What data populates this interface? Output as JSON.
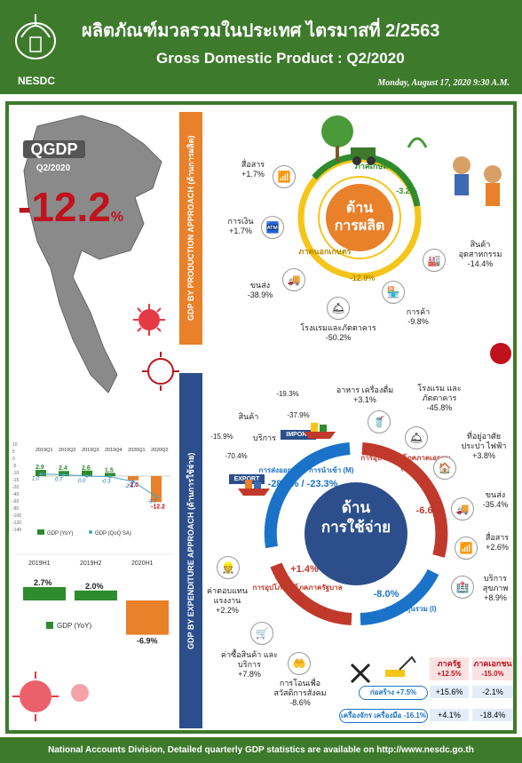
{
  "header": {
    "title_th": "ผลิตภัณฑ์มวลรวมในประเทศ ไตรมาสที่ 2/2563",
    "title_en": "Gross Domestic Product : Q2/2020",
    "org": "NESDC",
    "date": "Monday, August 17, 2020  9:30 A.M."
  },
  "qgdp": {
    "label": "QGDP",
    "quarter": "Q2/2020",
    "value": "-12.2",
    "unit": "%"
  },
  "production": {
    "side_label": "GDP BY PRODUCTION APPROACH (ด้านการผลิต)",
    "center_line1": "ด้าน",
    "center_line2": "การผลิต",
    "agri_label": "ภาคเกษตร",
    "agri_value": "-3.2%",
    "nonagri_label": "ภาคนอกเกษตร",
    "nonagri_value": "-12.9%",
    "items": [
      {
        "name": "สื่อสาร",
        "value": "+1.7%"
      },
      {
        "name": "การเงิน",
        "value": "+1.7%"
      },
      {
        "name": "ขนส่ง",
        "value": "-38.9%"
      },
      {
        "name": "โรงแรมและภัตตาคาร",
        "value": "-50.2%"
      },
      {
        "name": "การค้า",
        "value": "-9.8%"
      },
      {
        "name": "สินค้าอุตสาหกรรม",
        "value": "-14.4%"
      }
    ]
  },
  "chart_quarterly": {
    "quarters": [
      "2019Q1",
      "2019Q2",
      "2019Q3",
      "2019Q4",
      "2020Q1",
      "2020Q2"
    ],
    "yoy": [
      "2.9",
      "2.4",
      "2.6",
      "1.5",
      "-2.0",
      "-12.2"
    ],
    "sa": [
      "1.0",
      "0.7",
      "0.0",
      "-0.3",
      "-2.5",
      "-9.7"
    ],
    "yticks": [
      "10",
      "5",
      "0",
      "-5",
      "-10",
      "-15",
      "-20",
      "-40",
      "-60",
      "-80",
      "-100",
      "-120",
      "-140"
    ],
    "legend_yoy": "GDP (YoY)",
    "legend_sa": "GDP (QoQ SA)"
  },
  "chart_half": {
    "periods": [
      "2019H1",
      "2019H2",
      "2020H1"
    ],
    "values": [
      "2.7%",
      "2.0%",
      "-6.9%"
    ],
    "legend": "GDP (YoY)"
  },
  "chart_data": [
    {
      "type": "bar",
      "categories": [
        "2019Q1",
        "2019Q2",
        "2019Q3",
        "2019Q4",
        "2020Q1",
        "2020Q2"
      ],
      "series": [
        {
          "name": "GDP (YoY)",
          "values": [
            2.9,
            2.4,
            2.6,
            1.5,
            -2.0,
            -12.2
          ]
        },
        {
          "name": "GDP (QoQ SA)",
          "values": [
            1.0,
            0.7,
            0.0,
            -0.3,
            -2.5,
            -9.7
          ]
        }
      ]
    },
    {
      "type": "bar",
      "categories": [
        "2019H1",
        "2019H2",
        "2020H1"
      ],
      "series": [
        {
          "name": "GDP (YoY)",
          "values": [
            2.7,
            2.0,
            -6.9
          ]
        }
      ]
    }
  ],
  "expenditure": {
    "side_label": "GDP BY EXPENDITURE APPROACH (ด้านการใช้จ่าย)",
    "center_line1": "ด้าน",
    "center_line2": "การใช้จ่าย",
    "export_import": "-28.3% / -23.3%",
    "export_import_label": "การส่งออก (X) / การนำเข้า (M)",
    "consumption_label": "การอุปโภคบริโภคภาคเอกชน (C)",
    "consumption_value": "-6.6%",
    "gov_label": "การอุปโภคบริโภคภาครัฐบาล (G)",
    "gov_value": "+1.4%",
    "invest_label": "การลงทุนรวม (I)",
    "invest_value": "-8.0%",
    "trade": [
      {
        "name": "สินค้า",
        "x": "-15.9%",
        "m": "-19.3%"
      },
      {
        "name": "บริการ",
        "x": "-70.4%",
        "m": "-37.9%"
      }
    ],
    "export_tag": "EXPORT",
    "import_tag": "IMPORT",
    "consumption_items": [
      {
        "name": "อาหาร เครื่องดื่ม",
        "value": "+3.1%"
      },
      {
        "name": "โรงแรม และภัตตาคาร",
        "value": "-45.8%"
      },
      {
        "name": "ที่อยู่อาศัย ประปา ไฟฟ้า",
        "value": "+3.8%"
      },
      {
        "name": "ขนส่ง",
        "value": "-35.4%"
      },
      {
        "name": "สื่อสาร",
        "value": "+2.6%"
      },
      {
        "name": "บริการ สุขภาพ",
        "value": "+8.9%"
      }
    ],
    "gov_items": [
      {
        "name": "ค่าตอบแทน แรงงาน",
        "value": "+2.2%"
      },
      {
        "name": "ค่าซื้อสินค้า และบริการ",
        "value": "+7.8%"
      },
      {
        "name": "การโอนเพื่อ สวัสดิการสังคม",
        "value": "-8.6%"
      }
    ],
    "invest_table": {
      "col_gov": "ภาครัฐ",
      "col_gov_val": "+12.5%",
      "col_pri": "ภาคเอกชน",
      "col_pri_val": "-15.0%",
      "rows": [
        {
          "name": "ก่อสร้าง +7.5%",
          "gov": "+15.6%",
          "pri": "-2.1%"
        },
        {
          "name": "เครื่องจักร เครื่องมือ -16.1%",
          "gov": "+4.1%",
          "pri": "-18.4%"
        }
      ]
    }
  },
  "footer": "National Accounts Division, Detailed quarterly GDP statistics are available on http://www.nesdc.go.th"
}
